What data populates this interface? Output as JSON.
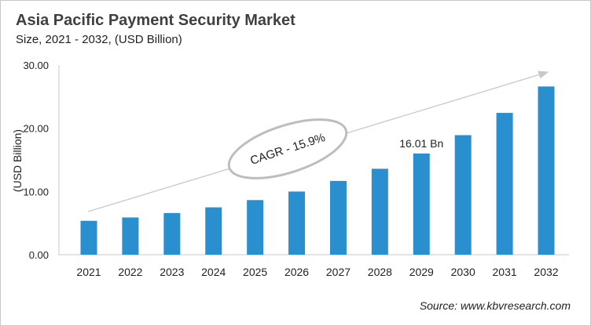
{
  "title": "Asia Pacific Payment Security Market",
  "subtitle": "Size, 2021 - 2032, (USD Billion)",
  "source": "Source: www.kbvresearch.com",
  "chart_data": {
    "type": "bar",
    "title": "Asia Pacific Payment Security Market",
    "subtitle": "Size, 2021 - 2032, (USD Billion)",
    "xlabel": "",
    "ylabel": "(USD Billion)",
    "ylim": [
      0,
      30
    ],
    "yticks": [
      "0.00",
      "10.00",
      "20.00",
      "30.00"
    ],
    "grid": false,
    "bar_color": "#2a8fcf",
    "categories": [
      "2021",
      "2022",
      "2023",
      "2024",
      "2025",
      "2026",
      "2027",
      "2028",
      "2029",
      "2030",
      "2031",
      "2032"
    ],
    "values": [
      5.36,
      5.89,
      6.59,
      7.49,
      8.64,
      9.99,
      11.67,
      13.59,
      16.01,
      18.91,
      22.43,
      26.61
    ],
    "data_labels": [
      {
        "category": "2029",
        "text": "16.01 Bn"
      }
    ],
    "annotation": "CAGR - 15.9%"
  }
}
